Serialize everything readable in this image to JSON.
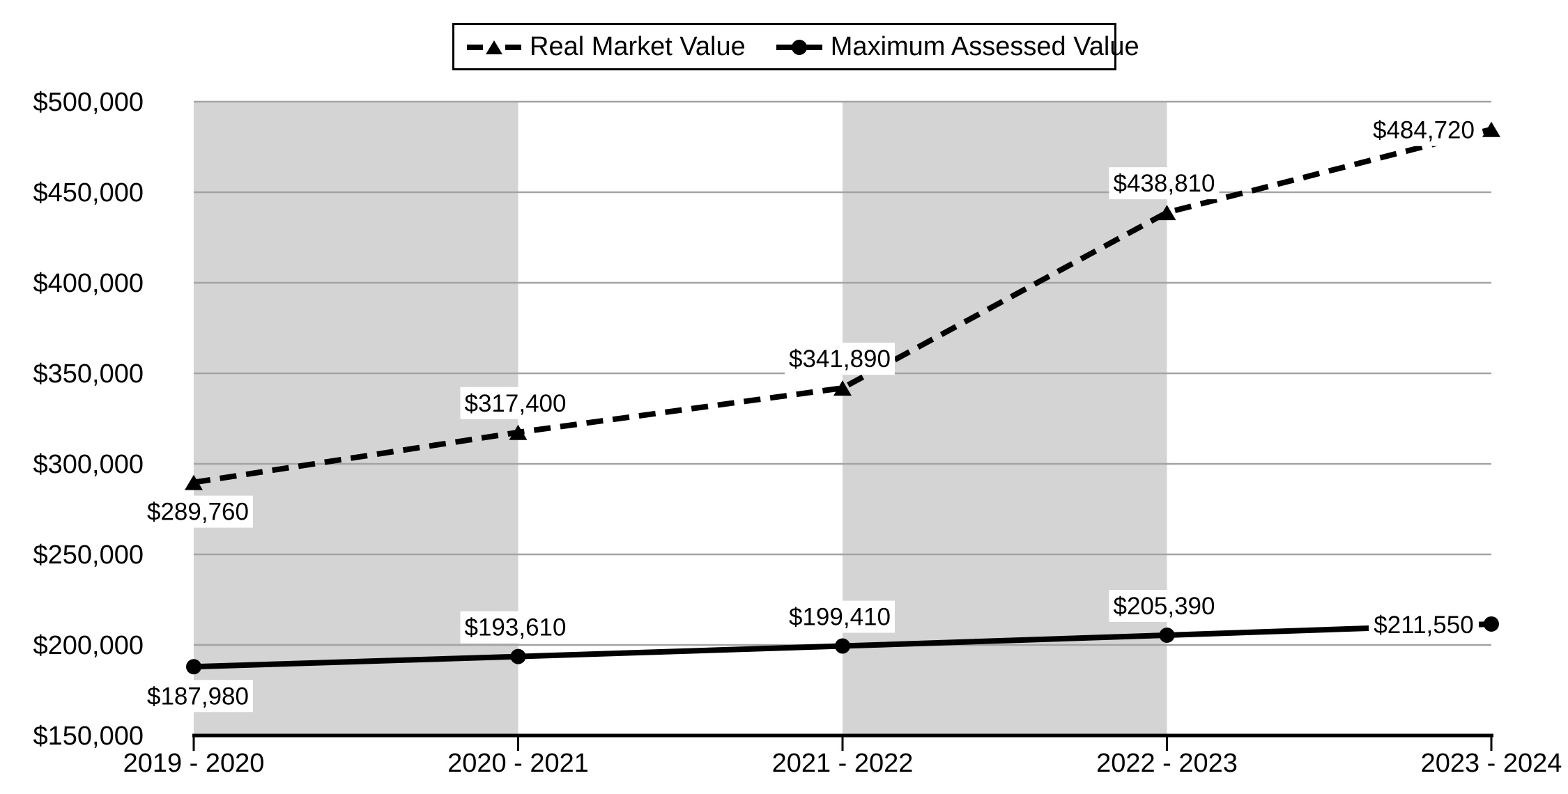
{
  "chart_data": {
    "type": "line",
    "title": "",
    "categories": [
      "2019 - 2020",
      "2020 - 2021",
      "2021 - 2022",
      "2022 - 2023",
      "2023 - 2024"
    ],
    "series": [
      {
        "name": "Real Market Value",
        "marker": "triangle",
        "line_style": "dashed",
        "values": [
          289760,
          317400,
          341890,
          438810,
          484720
        ],
        "data_labels": [
          "$289,760",
          "$317,400",
          "$341,890",
          "$438,810",
          "$484,720"
        ],
        "label_placements": [
          "below",
          "above",
          "above",
          "above",
          "left"
        ]
      },
      {
        "name": "Maximum Assessed Value",
        "marker": "circle",
        "line_style": "solid",
        "values": [
          187980,
          193610,
          199410,
          205390,
          211550
        ],
        "data_labels": [
          "$187,980",
          "$193,610",
          "$199,410",
          "$205,390",
          "$211,550"
        ],
        "label_placements": [
          "below",
          "above",
          "above",
          "above",
          "left"
        ]
      }
    ],
    "ylim": [
      150000,
      500000
    ],
    "ytick_step": 50000,
    "ytick_labels": [
      "$150,000",
      "$200,000",
      "$250,000",
      "$300,000",
      "$350,000",
      "$400,000",
      "$450,000",
      "$500,000"
    ],
    "grid": true,
    "legend_position": "top-center",
    "plot_bands": {
      "shaded_intervals": [
        0,
        2
      ]
    }
  },
  "colors": {
    "series": "#000000",
    "gridline": "#a3a3a3",
    "axis": "#000000",
    "band": "#d4d4d4",
    "label_bg": "#ffffff",
    "legend_border": "#000000",
    "background": "#ffffff"
  }
}
